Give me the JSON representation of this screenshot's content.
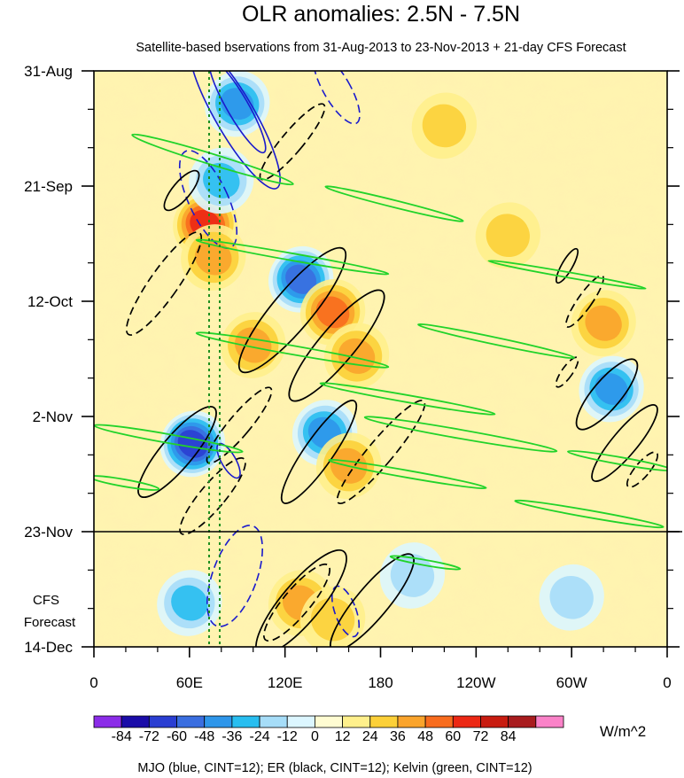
{
  "chart_data": {
    "type": "heatmap",
    "title": "OLR anomalies: 2.5N - 7.5N",
    "subtitle": "Satellite-based bservations from 31-Aug-2013 to 23-Nov-2013 + 21-day CFS Forecast",
    "x_ticks": [
      "0",
      "60E",
      "120E",
      "180",
      "120W",
      "60W",
      "0"
    ],
    "x_tick_values": [
      0,
      60,
      120,
      180,
      240,
      300,
      360
    ],
    "xlim": [
      0,
      360
    ],
    "y_ticks": [
      "31-Aug",
      "21-Sep",
      "12-Oct",
      "2-Nov",
      "23-Nov",
      "14-Dec"
    ],
    "y_tick_days": [
      0,
      21,
      42,
      63,
      84,
      105
    ],
    "ylim_days": [
      0,
      105
    ],
    "forecast_line_day": 84,
    "forecast_label": [
      "CFS",
      "Forecast"
    ],
    "colorbar": {
      "unit": "W/m^2",
      "labels": [
        "-84",
        "-72",
        "-60",
        "-48",
        "-36",
        "-24",
        "-12",
        "0",
        "12",
        "24",
        "36",
        "48",
        "60",
        "72",
        "84"
      ],
      "colors": [
        "#8b2ce8",
        "#1a0ca8",
        "#2a3ed2",
        "#3a6ee0",
        "#2e96ea",
        "#28bef0",
        "#a6ddf8",
        "#dcf6ff",
        "#fffcd2",
        "#fff08c",
        "#fcd038",
        "#faa42c",
        "#f86c1e",
        "#ec2814",
        "#c81c10",
        "#a81c1e",
        "#fa82c8"
      ]
    },
    "footer": "MJO (blue, CINT=12); ER (black, CINT=12); Kelvin (green, CINT=12)",
    "anomaly_features": [
      {
        "lon": 70,
        "day": 28,
        "value": 60
      },
      {
        "lon": 75,
        "day": 34,
        "value": 40
      },
      {
        "lon": 62,
        "day": 68,
        "value": -72
      },
      {
        "lon": 90,
        "day": 6,
        "value": -48
      },
      {
        "lon": 80,
        "day": 20,
        "value": -36
      },
      {
        "lon": 130,
        "day": 38,
        "value": -60
      },
      {
        "lon": 150,
        "day": 44,
        "value": 48
      },
      {
        "lon": 100,
        "day": 50,
        "value": 36
      },
      {
        "lon": 165,
        "day": 52,
        "value": 36
      },
      {
        "lon": 145,
        "day": 66,
        "value": -48
      },
      {
        "lon": 160,
        "day": 72,
        "value": 40
      },
      {
        "lon": 130,
        "day": 97,
        "value": 36
      },
      {
        "lon": 150,
        "day": 100,
        "value": 24
      },
      {
        "lon": 200,
        "day": 92,
        "value": -24
      },
      {
        "lon": 60,
        "day": 97,
        "value": -36
      },
      {
        "lon": 320,
        "day": 46,
        "value": 36
      },
      {
        "lon": 325,
        "day": 58,
        "value": -48
      },
      {
        "lon": 300,
        "day": 96,
        "value": -24
      },
      {
        "lon": 260,
        "day": 30,
        "value": 24
      },
      {
        "lon": 220,
        "day": 10,
        "value": 24
      }
    ]
  }
}
